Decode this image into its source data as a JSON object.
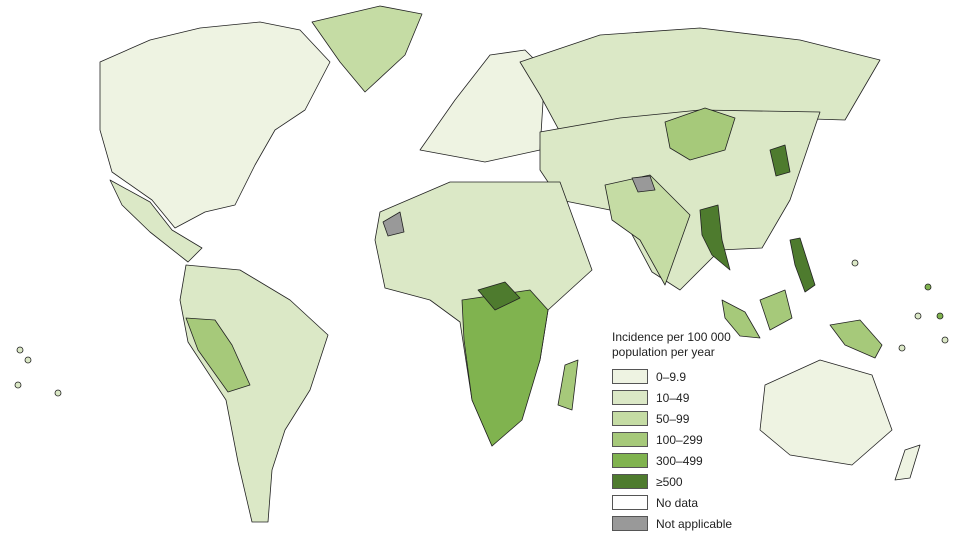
{
  "legend": {
    "title": "Incidence per 100 000 population per year",
    "items": [
      {
        "label": "0–9.9",
        "color": "#eef3e2"
      },
      {
        "label": "10–49",
        "color": "#dbe8c6"
      },
      {
        "label": "50–99",
        "color": "#c5dca4"
      },
      {
        "label": "100–299",
        "color": "#a6c97a"
      },
      {
        "label": "300–499",
        "color": "#80b34f"
      },
      {
        "label": "≥500",
        "color": "#4e7b2e"
      },
      {
        "label": "No data",
        "color": "#ffffff"
      },
      {
        "label": "Not applicable",
        "color": "#999999"
      }
    ]
  }
}
